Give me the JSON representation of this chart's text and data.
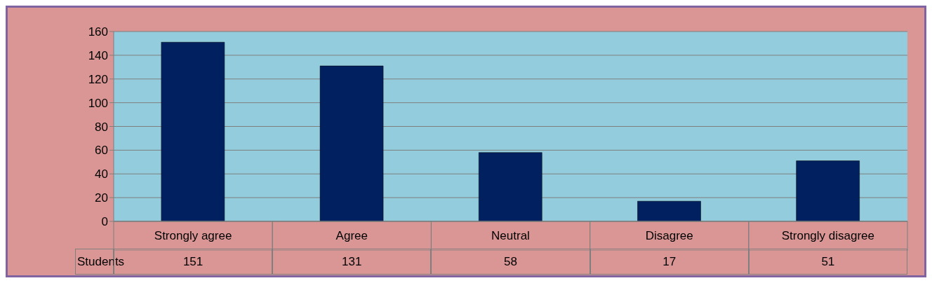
{
  "chart_data": {
    "type": "bar",
    "categories": [
      "Strongly agree",
      "Agree",
      "Neutral",
      "Disagree",
      "Strongly disagree"
    ],
    "series": [
      {
        "name": "Students",
        "color": "#002060",
        "values": [
          151,
          131,
          58,
          17,
          51
        ]
      }
    ],
    "ylim": [
      0,
      160
    ],
    "yticks": [
      0,
      20,
      40,
      60,
      80,
      100,
      120,
      140,
      160
    ],
    "grid": "y",
    "data_labels": true
  }
}
